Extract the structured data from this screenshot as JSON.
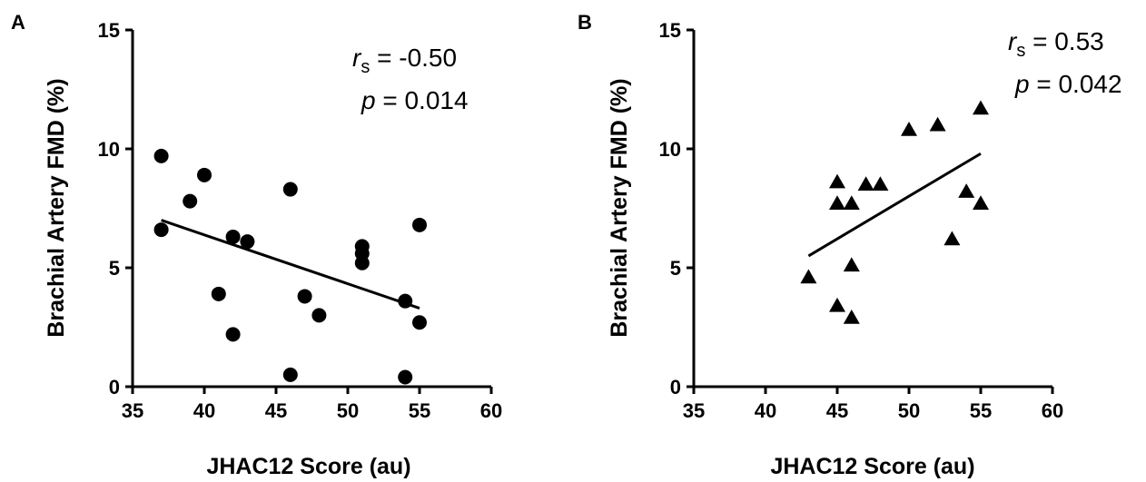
{
  "chart_data": [
    {
      "panel": "A",
      "type": "scatter",
      "marker": "circle",
      "color": "#000000",
      "xlabel": "JHAC12 Score (au)",
      "ylabel": "Brachial Artery FMD (%)",
      "xlim": [
        35,
        60
      ],
      "ylim": [
        0,
        15
      ],
      "xticks": [
        35,
        40,
        45,
        50,
        55,
        60
      ],
      "yticks": [
        0,
        5,
        10,
        15
      ],
      "grid": false,
      "stat_r_symbol": "r",
      "stat_r_sub": "s",
      "stat_r_value": " = -0.50",
      "stat_p_symbol": "p",
      "stat_p_value": " = 0.014",
      "points": [
        {
          "x": 37,
          "y": 9.7
        },
        {
          "x": 37,
          "y": 6.6
        },
        {
          "x": 39,
          "y": 7.8
        },
        {
          "x": 40,
          "y": 8.9
        },
        {
          "x": 41,
          "y": 3.9
        },
        {
          "x": 42,
          "y": 6.3
        },
        {
          "x": 42,
          "y": 2.2
        },
        {
          "x": 43,
          "y": 6.1
        },
        {
          "x": 46,
          "y": 8.3
        },
        {
          "x": 46,
          "y": 0.5
        },
        {
          "x": 47,
          "y": 3.8
        },
        {
          "x": 48,
          "y": 3.0
        },
        {
          "x": 51,
          "y": 5.9
        },
        {
          "x": 51,
          "y": 5.6
        },
        {
          "x": 51,
          "y": 5.2
        },
        {
          "x": 54,
          "y": 3.6
        },
        {
          "x": 54,
          "y": 0.4
        },
        {
          "x": 55,
          "y": 6.8
        },
        {
          "x": 55,
          "y": 2.7
        }
      ],
      "fit": {
        "x": [
          37,
          55
        ],
        "y": [
          7.0,
          3.3
        ]
      }
    },
    {
      "panel": "B",
      "type": "scatter",
      "marker": "triangle",
      "color": "#000000",
      "xlabel": "JHAC12 Score (au)",
      "ylabel": "Brachial Artery FMD (%)",
      "xlim": [
        35,
        60
      ],
      "ylim": [
        0,
        15
      ],
      "xticks": [
        35,
        40,
        45,
        50,
        55,
        60
      ],
      "yticks": [
        0,
        5,
        10,
        15
      ],
      "grid": false,
      "stat_r_symbol": "r",
      "stat_r_sub": "s",
      "stat_r_value": " = 0.53",
      "stat_p_symbol": "p",
      "stat_p_value": " = 0.042",
      "points": [
        {
          "x": 43,
          "y": 4.6
        },
        {
          "x": 45,
          "y": 8.6
        },
        {
          "x": 45,
          "y": 7.7
        },
        {
          "x": 45,
          "y": 3.4
        },
        {
          "x": 46,
          "y": 7.7
        },
        {
          "x": 46,
          "y": 5.1
        },
        {
          "x": 46,
          "y": 2.9
        },
        {
          "x": 47,
          "y": 8.5
        },
        {
          "x": 48,
          "y": 8.5
        },
        {
          "x": 50,
          "y": 10.8
        },
        {
          "x": 52,
          "y": 11.0
        },
        {
          "x": 53,
          "y": 6.2
        },
        {
          "x": 54,
          "y": 8.2
        },
        {
          "x": 55,
          "y": 11.7
        },
        {
          "x": 55,
          "y": 7.7
        }
      ],
      "fit": {
        "x": [
          43,
          55
        ],
        "y": [
          5.5,
          9.8
        ]
      }
    }
  ]
}
